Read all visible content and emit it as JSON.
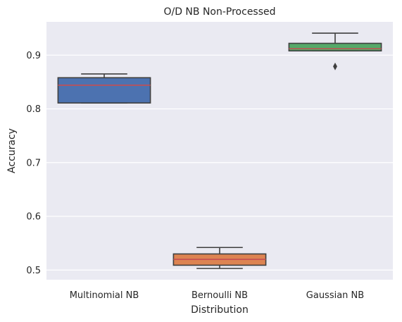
{
  "chart_data": {
    "type": "box",
    "title": "O/D NB Non-Processed",
    "xlabel": "Distribution",
    "ylabel": "Accuracy",
    "categories": [
      "Multinomial NB",
      "Bernoulli NB",
      "Gaussian NB"
    ],
    "ylim": [
      0.482,
      0.962
    ],
    "yticks": [
      0.5,
      0.6,
      0.7,
      0.8,
      0.9
    ],
    "ytick_labels": [
      "0.5",
      "0.6",
      "0.7",
      "0.8",
      "0.9"
    ],
    "grid": true,
    "boxes": [
      {
        "category": "Multinomial NB",
        "whisker_low": 0.811,
        "q1": 0.811,
        "median": 0.844,
        "q3": 0.858,
        "whisker_high": 0.865,
        "outliers": [],
        "color": "#4c72b0"
      },
      {
        "category": "Bernoulli NB",
        "whisker_low": 0.503,
        "q1": 0.509,
        "median": 0.52,
        "q3": 0.53,
        "whisker_high": 0.542,
        "outliers": [],
        "color": "#dd8452"
      },
      {
        "category": "Gaussian NB",
        "whisker_low": 0.908,
        "q1": 0.908,
        "median": 0.912,
        "q3": 0.922,
        "whisker_high": 0.941,
        "outliers": [
          0.879
        ],
        "color": "#55a868"
      }
    ],
    "colors": {
      "plot_background": "#eaeaf2",
      "grid": "#ffffff",
      "box_edge": "#3f3f3f",
      "median": "#c44e52"
    }
  }
}
